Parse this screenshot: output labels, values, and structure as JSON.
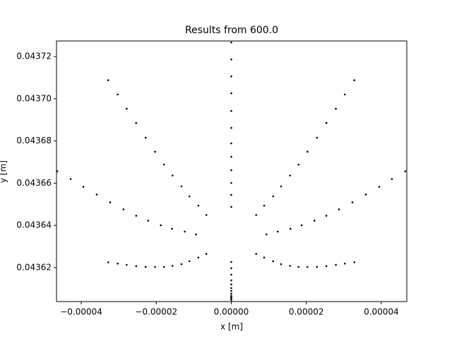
{
  "chart_data": {
    "type": "scatter",
    "title": "Results from 600.0",
    "xlabel": "x [m]",
    "ylabel": "y [m]",
    "color": "#000000",
    "grid": false,
    "xlim": [
      -4.66e-05,
      4.68e-05
    ],
    "ylim": [
      0.0436039,
      0.0437274
    ],
    "xticks": [
      {
        "value": -4e-05,
        "label": "−0.00004"
      },
      {
        "value": -2e-05,
        "label": "−0.00002"
      },
      {
        "value": 0,
        "label": "0.00000"
      },
      {
        "value": 2e-05,
        "label": "0.00002"
      },
      {
        "value": 4e-05,
        "label": "0.00004"
      }
    ],
    "yticks": [
      0.04362,
      0.04364,
      0.04366,
      0.04368,
      {
        "value": 0.0437,
        "label": "0.04370"
      },
      0.04372
    ],
    "x": [
      9.39e-06,
      6.64e-06,
      0,
      -6.64e-06,
      -9.39e-06,
      -6.64e-06,
      0,
      6.64e-06,
      1.24e-05,
      8.77e-06,
      0,
      -8.77e-06,
      -1.24e-05,
      -8.77e-06,
      0,
      8.77e-06,
      1.578e-05,
      1.116e-05,
      0,
      -1.116e-05,
      -1.578e-05,
      -1.116e-05,
      0,
      1.116e-05,
      1.878e-05,
      1.328e-05,
      0,
      -1.328e-05,
      -1.878e-05,
      -1.328e-05,
      0,
      1.328e-05,
      2.216e-05,
      1.567e-05,
      0,
      -1.567e-05,
      -2.216e-05,
      -1.567e-05,
      0,
      1.567e-05,
      2.535e-05,
      1.793e-05,
      0,
      -1.793e-05,
      -2.535e-05,
      -1.793e-05,
      0,
      1.793e-05,
      2.873e-05,
      2.032e-05,
      0,
      -2.032e-05,
      -2.873e-05,
      -2.032e-05,
      0,
      2.032e-05,
      3.23e-05,
      2.284e-05,
      0,
      -2.284e-05,
      -3.23e-05,
      -2.284e-05,
      0,
      2.284e-05,
      3.587e-05,
      2.536e-05,
      0,
      -2.536e-05,
      -3.587e-05,
      -2.536e-05,
      0,
      2.536e-05,
      3.944e-05,
      2.789e-05,
      0,
      -2.789e-05,
      -3.944e-05,
      -2.789e-05,
      0,
      2.789e-05,
      4.282e-05,
      3.028e-05,
      0,
      -3.028e-05,
      -4.282e-05,
      -3.028e-05,
      0,
      3.028e-05,
      4.639e-05,
      3.28e-05,
      0,
      -3.28e-05,
      -4.639e-05,
      -3.28e-05,
      0,
      3.28e-05
    ],
    "y": [
      0.04363572,
      0.04364494,
      0.04364876,
      0.04364494,
      0.04363572,
      0.0436265,
      0.04362268,
      0.0436265,
      0.04363706,
      0.04364936,
      0.04365445,
      0.04364936,
      0.04363706,
      0.04362476,
      0.04361967,
      0.04362476,
      0.04363839,
      0.04365376,
      0.04366013,
      0.04365376,
      0.04363839,
      0.04362302,
      0.04361665,
      0.04362302,
      0.04364006,
      0.0436585,
      0.04366614,
      0.0436585,
      0.04364006,
      0.04362162,
      0.04361398,
      0.04362162,
      0.04364224,
      0.04366364,
      0.0436725,
      0.04366364,
      0.04364224,
      0.04362084,
      0.04361198,
      0.04362084,
      0.04364458,
      0.04366882,
      0.04367886,
      0.04366882,
      0.04364458,
      0.04362034,
      0.0436103,
      0.04362034,
      0.04364759,
      0.0436749,
      0.04368621,
      0.0436749,
      0.04364759,
      0.04362028,
      0.04360897,
      0.04362028,
      0.04365093,
      0.04368155,
      0.04369423,
      0.04368155,
      0.04365093,
      0.04362031,
      0.04360763,
      0.04362031,
      0.04365461,
      0.04368854,
      0.0437026,
      0.04368854,
      0.04365461,
      0.04362068,
      0.04360662,
      0.04362068,
      0.04365829,
      0.04369529,
      0.04371062,
      0.04369529,
      0.04365829,
      0.04362129,
      0.04360596,
      0.04362129,
      0.04366197,
      0.04370205,
      0.04371865,
      0.04370205,
      0.04366197,
      0.04362189,
      0.04360529,
      0.04362189,
      0.04366565,
      0.0437088,
      0.04372668,
      0.0437088,
      0.04366565,
      0.0436225,
      0.04360462,
      0.0436225
    ]
  }
}
